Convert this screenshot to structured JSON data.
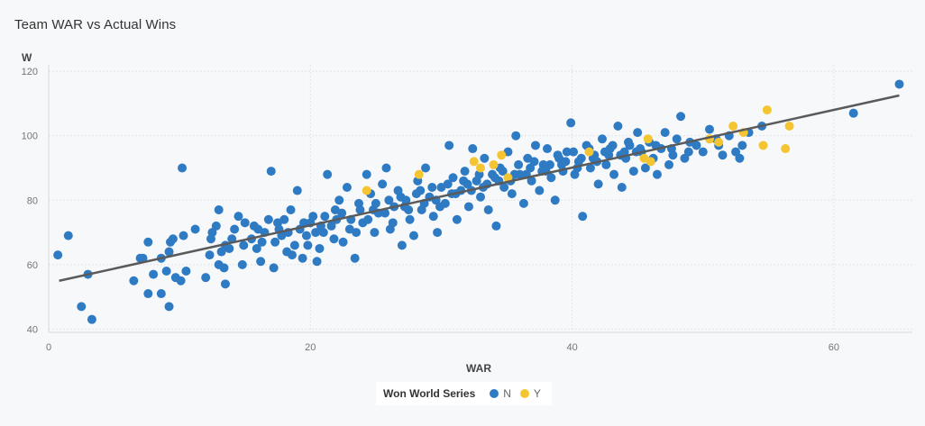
{
  "chart_data": {
    "type": "scatter",
    "title": "Team WAR vs Actual Wins",
    "xlabel": "WAR",
    "ylabel": "W",
    "xlim": [
      0,
      66
    ],
    "ylim": [
      39,
      122
    ],
    "x_ticks": [
      0,
      20,
      40,
      60
    ],
    "y_ticks": [
      40,
      60,
      80,
      100,
      120
    ],
    "grid": true,
    "legend": {
      "title": "Won World Series",
      "placement": "bottom-center",
      "entries": [
        {
          "label": "N",
          "color": "#2e7bc4"
        },
        {
          "label": "Y",
          "color": "#f5c531"
        }
      ]
    },
    "trendline": {
      "x": [
        0.8,
        65
      ],
      "y": [
        55,
        112.5
      ],
      "color": "#5a5a5a"
    },
    "series": [
      {
        "name": "N",
        "color": "#2e7bc4",
        "points": [
          [
            0.7,
            63
          ],
          [
            1.5,
            69
          ],
          [
            2.5,
            47
          ],
          [
            3.0,
            57
          ],
          [
            3.3,
            43
          ],
          [
            6.5,
            55
          ],
          [
            7.0,
            62
          ],
          [
            7.2,
            62
          ],
          [
            7.6,
            51
          ],
          [
            7.6,
            67
          ],
          [
            8.0,
            57
          ],
          [
            8.6,
            51
          ],
          [
            8.6,
            62
          ],
          [
            9.0,
            58
          ],
          [
            9.2,
            47
          ],
          [
            9.2,
            64
          ],
          [
            9.3,
            67
          ],
          [
            9.5,
            68
          ],
          [
            9.7,
            56
          ],
          [
            10.1,
            55
          ],
          [
            10.3,
            69
          ],
          [
            10.5,
            58
          ],
          [
            10.2,
            90
          ],
          [
            11.2,
            71
          ],
          [
            12.0,
            56
          ],
          [
            12.3,
            63
          ],
          [
            12.4,
            68
          ],
          [
            12.8,
            72
          ],
          [
            13.0,
            77
          ],
          [
            13.0,
            60
          ],
          [
            13.4,
            59
          ],
          [
            13.5,
            54
          ],
          [
            13.5,
            66
          ],
          [
            13.8,
            65
          ],
          [
            14.2,
            71
          ],
          [
            14.5,
            75
          ],
          [
            14.8,
            60
          ],
          [
            15.0,
            73
          ],
          [
            15.5,
            68
          ],
          [
            15.9,
            65
          ],
          [
            16.2,
            61
          ],
          [
            16.5,
            70
          ],
          [
            16.8,
            74
          ],
          [
            17.0,
            89
          ],
          [
            17.2,
            59
          ],
          [
            17.3,
            67
          ],
          [
            17.6,
            71
          ],
          [
            18.0,
            74
          ],
          [
            18.2,
            64
          ],
          [
            18.5,
            77
          ],
          [
            18.8,
            66
          ],
          [
            19.0,
            83
          ],
          [
            19.2,
            71
          ],
          [
            19.4,
            62
          ],
          [
            19.7,
            69
          ],
          [
            20.0,
            73
          ],
          [
            20.2,
            75
          ],
          [
            20.5,
            61
          ],
          [
            20.7,
            65
          ],
          [
            21.0,
            70
          ],
          [
            21.3,
            88
          ],
          [
            21.6,
            72
          ],
          [
            21.9,
            77
          ],
          [
            22.2,
            80
          ],
          [
            22.5,
            67
          ],
          [
            22.8,
            84
          ],
          [
            23.1,
            74
          ],
          [
            23.4,
            62
          ],
          [
            23.7,
            79
          ],
          [
            24.0,
            73
          ],
          [
            24.3,
            88
          ],
          [
            24.6,
            82
          ],
          [
            24.9,
            70
          ],
          [
            25.2,
            76
          ],
          [
            25.5,
            85
          ],
          [
            25.8,
            90
          ],
          [
            26.1,
            71
          ],
          [
            26.4,
            78
          ],
          [
            26.7,
            83
          ],
          [
            27.0,
            66
          ],
          [
            27.3,
            80
          ],
          [
            27.6,
            74
          ],
          [
            27.9,
            69
          ],
          [
            28.2,
            86
          ],
          [
            28.5,
            77
          ],
          [
            28.8,
            90
          ],
          [
            29.1,
            81
          ],
          [
            29.4,
            75
          ],
          [
            29.7,
            70
          ],
          [
            30.0,
            84
          ],
          [
            30.3,
            79
          ],
          [
            30.6,
            97
          ],
          [
            30.9,
            87
          ],
          [
            31.2,
            74
          ],
          [
            31.5,
            83
          ],
          [
            31.8,
            89
          ],
          [
            32.1,
            78
          ],
          [
            32.4,
            96
          ],
          [
            32.7,
            86
          ],
          [
            33.0,
            81
          ],
          [
            33.3,
            93
          ],
          [
            33.6,
            77
          ],
          [
            33.9,
            88
          ],
          [
            34.2,
            72
          ],
          [
            34.5,
            90
          ],
          [
            34.8,
            84
          ],
          [
            35.1,
            95
          ],
          [
            35.4,
            82
          ],
          [
            35.7,
            100
          ],
          [
            36.0,
            88
          ],
          [
            36.3,
            79
          ],
          [
            36.6,
            93
          ],
          [
            36.9,
            86
          ],
          [
            37.2,
            97
          ],
          [
            37.5,
            83
          ],
          [
            37.8,
            91
          ],
          [
            38.1,
            96
          ],
          [
            38.4,
            87
          ],
          [
            38.7,
            80
          ],
          [
            39.0,
            93
          ],
          [
            39.3,
            89
          ],
          [
            39.6,
            95
          ],
          [
            39.9,
            104
          ],
          [
            40.2,
            88
          ],
          [
            40.5,
            92
          ],
          [
            40.8,
            75
          ],
          [
            41.1,
            97
          ],
          [
            41.4,
            90
          ],
          [
            41.7,
            94
          ],
          [
            42.0,
            85
          ],
          [
            42.3,
            99
          ],
          [
            42.6,
            91
          ],
          [
            42.9,
            96
          ],
          [
            43.2,
            88
          ],
          [
            43.5,
            103
          ],
          [
            43.8,
            84
          ],
          [
            44.1,
            93
          ],
          [
            44.4,
            97
          ],
          [
            44.7,
            89
          ],
          [
            45.0,
            101
          ],
          [
            45.3,
            95
          ],
          [
            45.6,
            90
          ],
          [
            45.9,
            98
          ],
          [
            46.2,
            93
          ],
          [
            46.5,
            88
          ],
          [
            46.8,
            96
          ],
          [
            47.1,
            101
          ],
          [
            47.4,
            91
          ],
          [
            47.7,
            94
          ],
          [
            48.0,
            99
          ],
          [
            48.3,
            106
          ],
          [
            48.6,
            93
          ],
          [
            48.9,
            95
          ],
          [
            49.5,
            97
          ],
          [
            50.0,
            95
          ],
          [
            50.5,
            102
          ],
          [
            51.0,
            99
          ],
          [
            51.5,
            94
          ],
          [
            52.0,
            100
          ],
          [
            52.5,
            95
          ],
          [
            53.0,
            97
          ],
          [
            53.5,
            101
          ],
          [
            54.5,
            103
          ],
          [
            61.5,
            107
          ],
          [
            65.0,
            116
          ],
          [
            12.5,
            70
          ],
          [
            13.2,
            64
          ],
          [
            14.0,
            68
          ],
          [
            14.9,
            66
          ],
          [
            15.7,
            72
          ],
          [
            16.3,
            67
          ],
          [
            17.8,
            69
          ],
          [
            18.6,
            63
          ],
          [
            19.5,
            73
          ],
          [
            20.4,
            70
          ],
          [
            21.1,
            75
          ],
          [
            21.8,
            68
          ],
          [
            22.4,
            76
          ],
          [
            23.0,
            71
          ],
          [
            23.8,
            77
          ],
          [
            24.4,
            74
          ],
          [
            25.0,
            79
          ],
          [
            25.7,
            76
          ],
          [
            26.3,
            73
          ],
          [
            26.9,
            81
          ],
          [
            27.5,
            77
          ],
          [
            28.1,
            82
          ],
          [
            28.7,
            79
          ],
          [
            29.3,
            84
          ],
          [
            29.9,
            78
          ],
          [
            30.5,
            85
          ],
          [
            31.1,
            82
          ],
          [
            31.7,
            86
          ],
          [
            32.3,
            83
          ],
          [
            32.9,
            88
          ],
          [
            33.5,
            85
          ],
          [
            34.1,
            87
          ],
          [
            34.7,
            89
          ],
          [
            35.3,
            86
          ],
          [
            35.9,
            91
          ],
          [
            36.5,
            88
          ],
          [
            37.1,
            92
          ],
          [
            37.7,
            89
          ],
          [
            38.3,
            91
          ],
          [
            38.9,
            94
          ],
          [
            39.5,
            92
          ],
          [
            40.1,
            95
          ],
          [
            40.7,
            93
          ],
          [
            41.3,
            96
          ],
          [
            41.9,
            92
          ],
          [
            42.5,
            95
          ],
          [
            43.1,
            97
          ],
          [
            43.7,
            94
          ],
          [
            44.3,
            98
          ],
          [
            44.9,
            95
          ],
          [
            16.0,
            71
          ],
          [
            17.5,
            73
          ],
          [
            18.3,
            70
          ],
          [
            19.8,
            66
          ],
          [
            20.8,
            72
          ],
          [
            22.0,
            74
          ],
          [
            23.5,
            70
          ],
          [
            24.8,
            77
          ],
          [
            26.0,
            80
          ],
          [
            27.2,
            78
          ],
          [
            28.4,
            83
          ],
          [
            29.6,
            80
          ],
          [
            30.8,
            82
          ],
          [
            32.0,
            85
          ],
          [
            33.2,
            84
          ],
          [
            34.4,
            86
          ],
          [
            35.6,
            88
          ],
          [
            36.8,
            90
          ],
          [
            38.0,
            89
          ],
          [
            39.2,
            91
          ],
          [
            40.4,
            90
          ],
          [
            41.6,
            93
          ],
          [
            42.8,
            94
          ],
          [
            44.0,
            95
          ],
          [
            45.2,
            96
          ],
          [
            46.4,
            97
          ],
          [
            47.6,
            96
          ],
          [
            49.0,
            98
          ],
          [
            51.2,
            97
          ],
          [
            52.8,
            93
          ]
        ]
      },
      {
        "name": "Y",
        "color": "#f5c531",
        "points": [
          [
            24.3,
            83
          ],
          [
            28.3,
            88
          ],
          [
            32.5,
            92
          ],
          [
            33.0,
            90
          ],
          [
            34.0,
            91
          ],
          [
            34.6,
            94
          ],
          [
            35.1,
            87
          ],
          [
            41.3,
            95
          ],
          [
            45.5,
            93
          ],
          [
            45.8,
            99
          ],
          [
            46.0,
            92
          ],
          [
            50.5,
            99
          ],
          [
            51.2,
            98
          ],
          [
            52.3,
            103
          ],
          [
            53.1,
            101
          ],
          [
            54.6,
            97
          ],
          [
            54.9,
            108
          ],
          [
            56.3,
            96
          ],
          [
            56.6,
            103
          ]
        ]
      }
    ]
  }
}
